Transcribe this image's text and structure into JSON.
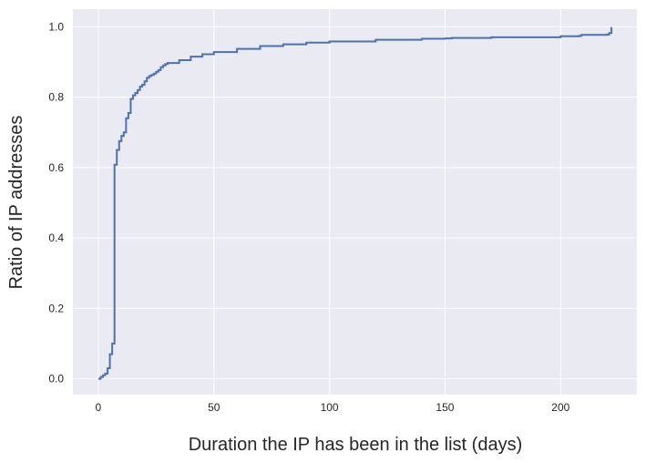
{
  "chart_data": {
    "type": "line",
    "title": "",
    "xlabel": "Duration the IP has been in the list (days)",
    "ylabel": "Ratio of IP addresses",
    "xlim": [
      -11,
      233
    ],
    "ylim": [
      -0.045,
      1.05
    ],
    "grid": true,
    "step": true,
    "xticks": [
      0,
      50,
      100,
      150,
      200
    ],
    "yticks": [
      0.0,
      0.2,
      0.4,
      0.6,
      0.8,
      1.0
    ],
    "xtick_labels": [
      "0",
      "50",
      "100",
      "150",
      "200"
    ],
    "ytick_labels": [
      "0.0",
      "0.2",
      "0.4",
      "0.6",
      "0.8",
      "1.0"
    ],
    "colors": {
      "background": "#eaeaf2",
      "grid": "#ffffff",
      "line": "#4c72b0"
    },
    "series": [
      {
        "values_x": [
          0,
          1,
          2,
          3,
          4,
          5,
          6,
          7,
          8,
          9,
          10,
          11,
          12,
          13,
          14,
          15,
          16,
          17,
          18,
          19,
          20,
          21,
          22,
          23,
          24,
          25,
          26,
          27,
          28,
          29,
          30,
          35,
          40,
          45,
          50,
          60,
          70,
          80,
          90,
          100,
          120,
          140,
          150,
          153,
          170,
          200,
          208,
          209,
          220,
          221,
          222
        ],
        "values_y": [
          0.0,
          0.005,
          0.01,
          0.015,
          0.03,
          0.07,
          0.1,
          0.608,
          0.65,
          0.675,
          0.69,
          0.7,
          0.74,
          0.755,
          0.795,
          0.805,
          0.812,
          0.82,
          0.83,
          0.835,
          0.845,
          0.855,
          0.86,
          0.863,
          0.867,
          0.872,
          0.877,
          0.885,
          0.89,
          0.894,
          0.897,
          0.905,
          0.915,
          0.922,
          0.928,
          0.937,
          0.945,
          0.95,
          0.955,
          0.958,
          0.963,
          0.966,
          0.967,
          0.968,
          0.97,
          0.973,
          0.974,
          0.977,
          0.978,
          0.982,
          0.999
        ]
      }
    ]
  }
}
